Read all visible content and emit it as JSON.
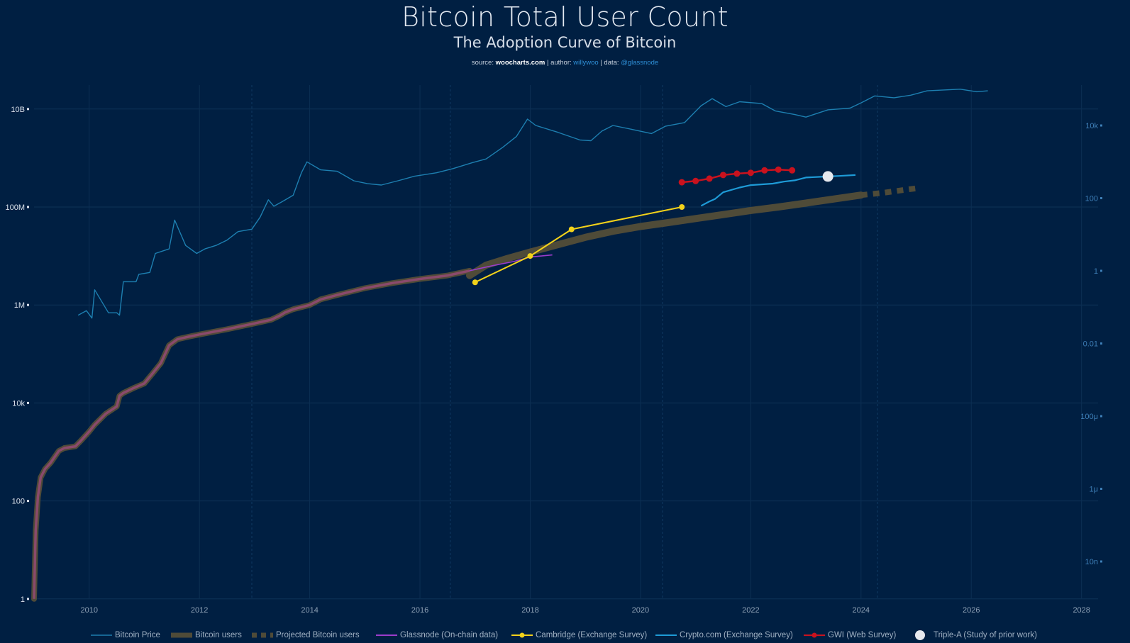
{
  "title": "Bitcoin Total User Count",
  "subtitle": "The Adoption Curve of Bitcoin",
  "credits": {
    "source_label": "source:",
    "source": "woocharts.com",
    "author_label": "author:",
    "author": "willywoo",
    "data_label": "data:",
    "data": "@glassnode",
    "sep": "|"
  },
  "colors": {
    "background": "#001f42",
    "price": "#1d7fb0",
    "users": "#4f4b38",
    "users_projected": "#4f4b38",
    "onchain_inner": "#8a4a6c",
    "glassnode": "#9b3ccc",
    "cambridge": "#f3d21a",
    "cryptocom": "#1e9bd7",
    "gwi": "#c9121e",
    "triplea": "#e6e9ee"
  },
  "chart_data": {
    "type": "line",
    "x_axis": {
      "range": [
        2009,
        2028.3
      ],
      "ticks": [
        "2010",
        "2012",
        "2014",
        "2016",
        "2018",
        "2020",
        "2022",
        "2024",
        "2026",
        "2028"
      ]
    },
    "y_axis_left": {
      "scale": "log",
      "range": [
        1,
        20000000000
      ],
      "ticks": [
        {
          "v": 1,
          "label": "1"
        },
        {
          "v": 100,
          "label": "100"
        },
        {
          "v": 10000,
          "label": "10k"
        },
        {
          "v": 1000000,
          "label": "1M"
        },
        {
          "v": 100000000,
          "label": "100M"
        },
        {
          "v": 10000000000,
          "label": "10B"
        }
      ]
    },
    "y_axis_right": {
      "scale": "log",
      "ticks": [
        {
          "v": 1e-08,
          "label": "10n"
        },
        {
          "v": 1e-06,
          "label": "1μ"
        },
        {
          "v": 0.0001,
          "label": "100μ"
        },
        {
          "v": 0.01,
          "label": "0.01"
        },
        {
          "v": 1,
          "label": "1"
        },
        {
          "v": 100,
          "label": "100"
        },
        {
          "v": 10000,
          "label": "10k"
        }
      ]
    },
    "grid": true,
    "legend_position": "bottom",
    "series": [
      {
        "key": "price",
        "name": "Bitcoin Price",
        "axis": "right",
        "x": [
          2009.8,
          2009.95,
          2010.05,
          2010.1,
          2010.35,
          2010.5,
          2010.55,
          2010.62,
          2010.85,
          2010.9,
          2011.1,
          2011.2,
          2011.45,
          2011.55,
          2011.75,
          2011.95,
          2012.1,
          2012.3,
          2012.5,
          2012.7,
          2012.95,
          2013.1,
          2013.25,
          2013.35,
          2013.5,
          2013.7,
          2013.85,
          2013.95,
          2014.2,
          2014.5,
          2014.8,
          2015.05,
          2015.3,
          2015.6,
          2015.9,
          2016.3,
          2016.6,
          2016.95,
          2017.2,
          2017.5,
          2017.75,
          2017.95,
          2018.1,
          2018.5,
          2018.9,
          2019.1,
          2019.3,
          2019.5,
          2019.9,
          2020.2,
          2020.45,
          2020.8,
          2021.1,
          2021.3,
          2021.55,
          2021.8,
          2022.2,
          2022.45,
          2022.8,
          2023.0,
          2023.4,
          2023.8,
          2024.0,
          2024.25,
          2024.6,
          2024.9,
          2025.2,
          2025.5,
          2025.8,
          2026.1,
          2026.3
        ],
        "y": [
          0.06,
          0.08,
          0.05,
          0.3,
          0.07,
          0.07,
          0.06,
          0.5,
          0.5,
          0.8,
          0.9,
          3,
          4,
          25,
          5,
          3,
          4,
          5,
          7,
          12,
          14,
          30,
          90,
          60,
          80,
          120,
          500,
          1000,
          600,
          550,
          300,
          250,
          230,
          300,
          400,
          500,
          650,
          950,
          1200,
          2500,
          5000,
          15000,
          10000,
          6500,
          4000,
          3800,
          7000,
          10000,
          7500,
          6000,
          9500,
          12000,
          35000,
          55000,
          33000,
          45000,
          40000,
          25000,
          20000,
          17000,
          27000,
          30000,
          42000,
          65000,
          58000,
          68000,
          90000,
          95000,
          100000,
          85000,
          90000
        ]
      },
      {
        "key": "users",
        "name": "Bitcoin users",
        "axis": "left",
        "x": [
          2016.9,
          2017.2,
          2017.6,
          2018.0,
          2018.5,
          2019.0,
          2019.5,
          2020.0,
          2020.5,
          2021.0,
          2021.5,
          2022.0,
          2022.5,
          2023.0,
          2023.5,
          2024.0
        ],
        "y": [
          4000000,
          6500000,
          9000000,
          12000000,
          17000000,
          24000000,
          32000000,
          40000000,
          48000000,
          58000000,
          70000000,
          85000000,
          100000000,
          120000000,
          145000000,
          175000000
        ]
      },
      {
        "key": "users_projected",
        "name": "Projected Bitcoin users",
        "axis": "left",
        "x": [
          2024.0,
          2024.4,
          2024.8,
          2025.0
        ],
        "y": [
          175000000,
          195000000,
          225000000,
          240000000
        ]
      },
      {
        "key": "onchain",
        "name": "",
        "axis": "left",
        "x": [
          2009.0,
          2009.03,
          2009.07,
          2009.12,
          2009.2,
          2009.3,
          2009.45,
          2009.55,
          2009.75,
          2009.85,
          2010.0,
          2010.1,
          2010.3,
          2010.5,
          2010.55,
          2010.62,
          2010.8,
          2011.0,
          2011.15,
          2011.3,
          2011.45,
          2011.6,
          2011.8,
          2012.0,
          2012.5,
          2013.0,
          2013.3,
          2013.45,
          2013.55,
          2013.7,
          2014.0,
          2014.2,
          2014.5,
          2015.0,
          2015.5,
          2016.0,
          2016.5,
          2016.9
        ],
        "y": [
          1,
          25,
          120,
          300,
          450,
          600,
          1050,
          1200,
          1300,
          1700,
          2600,
          3600,
          6000,
          8500,
          14000,
          16000,
          20000,
          25000,
          40000,
          65000,
          150000,
          200000,
          225000,
          250000,
          320000,
          420000,
          500000,
          600000,
          700000,
          820000,
          1000000,
          1300000,
          1600000,
          2200000,
          2800000,
          3400000,
          4000000,
          5000000
        ]
      },
      {
        "key": "glassnode",
        "name": "Glassnode (On-chain data)",
        "axis": "left",
        "x": [
          2016.9,
          2017.3,
          2017.7,
          2018.0,
          2018.4
        ],
        "y": [
          5000000,
          6300000,
          7700000,
          9500000,
          10500000
        ]
      },
      {
        "key": "cambridge",
        "name": "Cambridge (Exchange Survey)",
        "axis": "left",
        "x": [
          2017.0,
          2018.0,
          2018.75,
          2020.75
        ],
        "y": [
          2900000,
          10000000,
          35000000,
          100000000
        ]
      },
      {
        "key": "cryptocom",
        "name": "Crypto.com (Exchange Survey)",
        "axis": "left",
        "x": [
          2021.1,
          2021.25,
          2021.35,
          2021.5,
          2021.8,
          2022.0,
          2022.4,
          2022.6,
          2022.8,
          2023.0,
          2023.4,
          2023.6,
          2023.9
        ],
        "y": [
          106000000,
          130000000,
          145000000,
          200000000,
          250000000,
          280000000,
          300000000,
          330000000,
          350000000,
          400000000,
          420000000,
          430000000,
          450000000
        ]
      },
      {
        "key": "gwi",
        "name": "GWI (Web Survey)",
        "axis": "left",
        "x": [
          2020.75,
          2021.0,
          2021.25,
          2021.5,
          2021.75,
          2022.0,
          2022.25,
          2022.5,
          2022.75
        ],
        "y": [
          320000000,
          340000000,
          380000000,
          450000000,
          480000000,
          500000000,
          560000000,
          580000000,
          560000000
        ]
      },
      {
        "key": "triplea",
        "name": "Triple-A (Study of prior work)",
        "axis": "left",
        "x": [
          2023.4
        ],
        "y": [
          420000000
        ]
      }
    ]
  },
  "legend": [
    {
      "key": "price",
      "label": "Bitcoin Price"
    },
    {
      "key": "users",
      "label": "Bitcoin users"
    },
    {
      "key": "users_projected",
      "label": "Projected Bitcoin users"
    },
    {
      "key": "glassnode",
      "label": "Glassnode (On-chain data)"
    },
    {
      "key": "cambridge",
      "label": "Cambridge (Exchange Survey)"
    },
    {
      "key": "cryptocom",
      "label": "Crypto.com (Exchange Survey)"
    },
    {
      "key": "gwi",
      "label": "GWI (Web Survey)"
    },
    {
      "key": "triplea",
      "label": "Triple-A (Study of prior work)"
    }
  ]
}
